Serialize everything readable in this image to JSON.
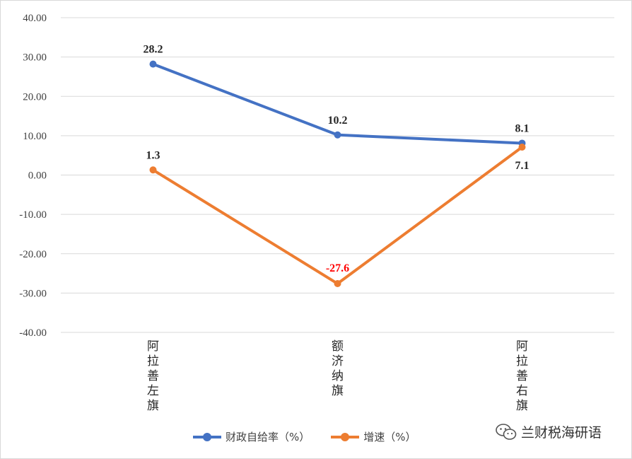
{
  "chart_data": {
    "type": "line",
    "categories": [
      "阿拉善左旗",
      "额济纳旗",
      "阿拉善右旗"
    ],
    "series": [
      {
        "name": "财政自给率（%）",
        "values": [
          28.2,
          10.2,
          8.1
        ],
        "color": "#4472c4",
        "labels": [
          "28.2",
          "10.2",
          "8.1"
        ]
      },
      {
        "name": "增速（%）",
        "values": [
          1.3,
          -27.6,
          7.1
        ],
        "color": "#ed7d31",
        "labels": [
          "1.3",
          "-27.6",
          "7.1"
        ]
      }
    ],
    "yticks": [
      "40.00",
      "30.00",
      "20.00",
      "10.00",
      "0.00",
      "-10.00",
      "-20.00",
      "-30.00",
      "-40.00"
    ],
    "ylim": [
      -40,
      40
    ],
    "ystep": 10,
    "grid": true,
    "legend_position": "bottom",
    "negative_label_color": "#ff0000"
  },
  "watermark": {
    "text": "兰财税海研语",
    "icon": "wechat-icon"
  }
}
